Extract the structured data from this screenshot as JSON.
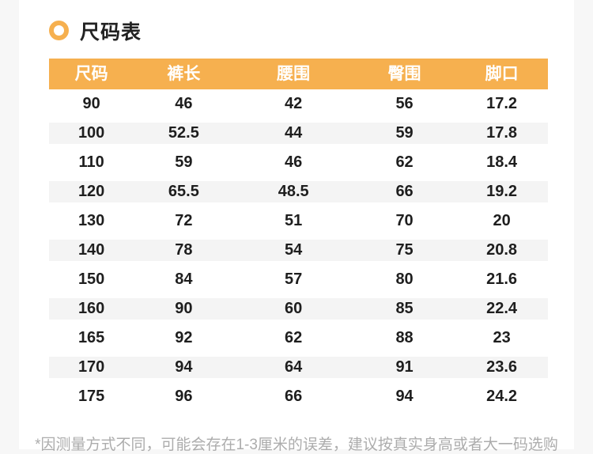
{
  "page": {
    "title": "尺码表",
    "footnote": "*因测量方式不同，可能会存在1-3厘米的误差，建议按真实身高或者大一码选购"
  },
  "colors": {
    "accent": "#F6B04F",
    "stripe_row": "#F4F4F4",
    "page_gutter": "#F7F7F7",
    "cell_text": "#1E1E1E",
    "header_text": "#FFFFFF",
    "footnote_text": "#ACACAC"
  },
  "icons": {
    "title_bullet": "ring-icon"
  },
  "chart_data": {
    "type": "table",
    "title": "尺码表",
    "columns": [
      "尺码",
      "裤长",
      "腰围",
      "臀围",
      "脚口"
    ],
    "rows": [
      [
        "90",
        "46",
        "42",
        "56",
        "17.2"
      ],
      [
        "100",
        "52.5",
        "44",
        "59",
        "17.8"
      ],
      [
        "110",
        "59",
        "46",
        "62",
        "18.4"
      ],
      [
        "120",
        "65.5",
        "48.5",
        "66",
        "19.2"
      ],
      [
        "130",
        "72",
        "51",
        "70",
        "20"
      ],
      [
        "140",
        "78",
        "54",
        "75",
        "20.8"
      ],
      [
        "150",
        "84",
        "57",
        "80",
        "21.6"
      ],
      [
        "160",
        "90",
        "60",
        "85",
        "22.4"
      ],
      [
        "165",
        "92",
        "62",
        "88",
        "23"
      ],
      [
        "170",
        "94",
        "64",
        "91",
        "23.6"
      ],
      [
        "175",
        "96",
        "66",
        "94",
        "24.2"
      ]
    ]
  }
}
